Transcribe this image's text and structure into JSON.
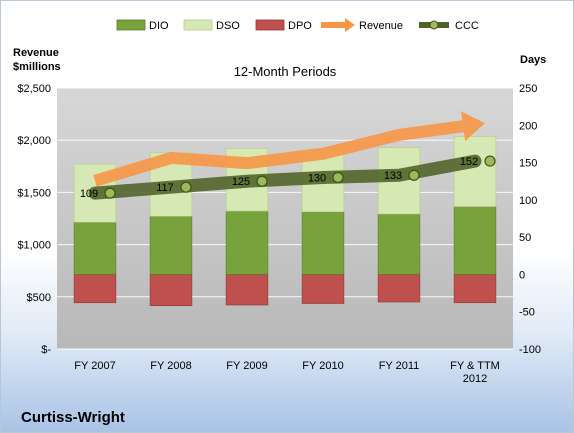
{
  "company_name": "Curtiss-Wright",
  "chart_data": {
    "type": "bar",
    "title": "12-Month Periods",
    "categories": [
      "FY 2007",
      "FY 2008",
      "FY 2009",
      "FY 2010",
      "FY 2011",
      [
        "FY & TTM",
        "2012"
      ]
    ],
    "left_axis": {
      "label_line1": "Revenue",
      "label_line2": "$millions",
      "range": [
        0,
        2500
      ],
      "ticks": [
        0,
        500,
        1000,
        1500,
        2000,
        2500
      ],
      "tick_labels": [
        "$-",
        "$500",
        "$1,000",
        "$1,500",
        "$2,000",
        "$2,500"
      ]
    },
    "right_axis": {
      "label": "Days",
      "range": [
        -100,
        250
      ],
      "ticks": [
        -100,
        -50,
        0,
        50,
        100,
        150,
        200,
        250
      ],
      "tick_labels": [
        "-100",
        "-50",
        "0",
        "50",
        "100",
        "150",
        "200",
        "250"
      ]
    },
    "legend": {
      "position": "top",
      "entries": [
        "DIO",
        "DSO",
        "DPO",
        "Revenue",
        "CCC"
      ]
    },
    "series": [
      {
        "name": "DIO",
        "axis": "right",
        "values": [
          70,
          78,
          85,
          84,
          81,
          91
        ]
      },
      {
        "name": "DSO",
        "axis": "right",
        "values": [
          78,
          85,
          84,
          84,
          89,
          94
        ]
      },
      {
        "name": "DPO",
        "axis": "right",
        "values": [
          -38,
          -42,
          -41,
          -39,
          -37,
          -38
        ]
      },
      {
        "name": "Revenue",
        "axis": "left",
        "values": [
          1610,
          1830,
          1780,
          1870,
          2050,
          2150
        ]
      },
      {
        "name": "CCC",
        "axis": "right",
        "values": [
          109,
          117,
          125,
          130,
          133,
          152
        ]
      }
    ],
    "colors": {
      "DIO": "#77a23c",
      "DSO": "#d6e8b4",
      "DPO": "#c0504d",
      "Revenue": "#f79646",
      "CCC": "#4f6228"
    }
  }
}
